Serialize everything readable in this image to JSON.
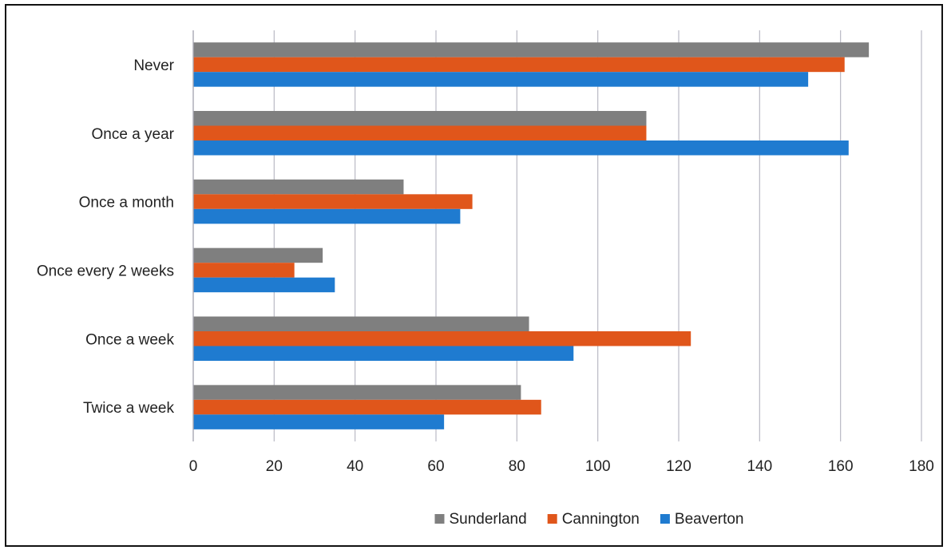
{
  "chart_data": {
    "type": "bar",
    "orientation": "horizontal",
    "categories": [
      "Never",
      "Once a year",
      "Once a month",
      "Once every 2 weeks",
      "Once a week",
      "Twice a week"
    ],
    "series": [
      {
        "name": "Sunderland",
        "color": "#7f7f7f",
        "values": [
          167,
          112,
          52,
          32,
          83,
          81
        ]
      },
      {
        "name": "Cannington",
        "color": "#e0561b",
        "values": [
          161,
          112,
          69,
          25,
          123,
          86
        ]
      },
      {
        "name": "Beaverton",
        "color": "#1f7bd0",
        "values": [
          152,
          162,
          66,
          35,
          94,
          62
        ]
      }
    ],
    "xlim": [
      0,
      180
    ],
    "xticks": [
      0,
      20,
      40,
      60,
      80,
      100,
      120,
      140,
      160,
      180
    ],
    "title": "",
    "xlabel": "",
    "ylabel": "",
    "grid": "vertical",
    "legend_position": "bottom"
  }
}
